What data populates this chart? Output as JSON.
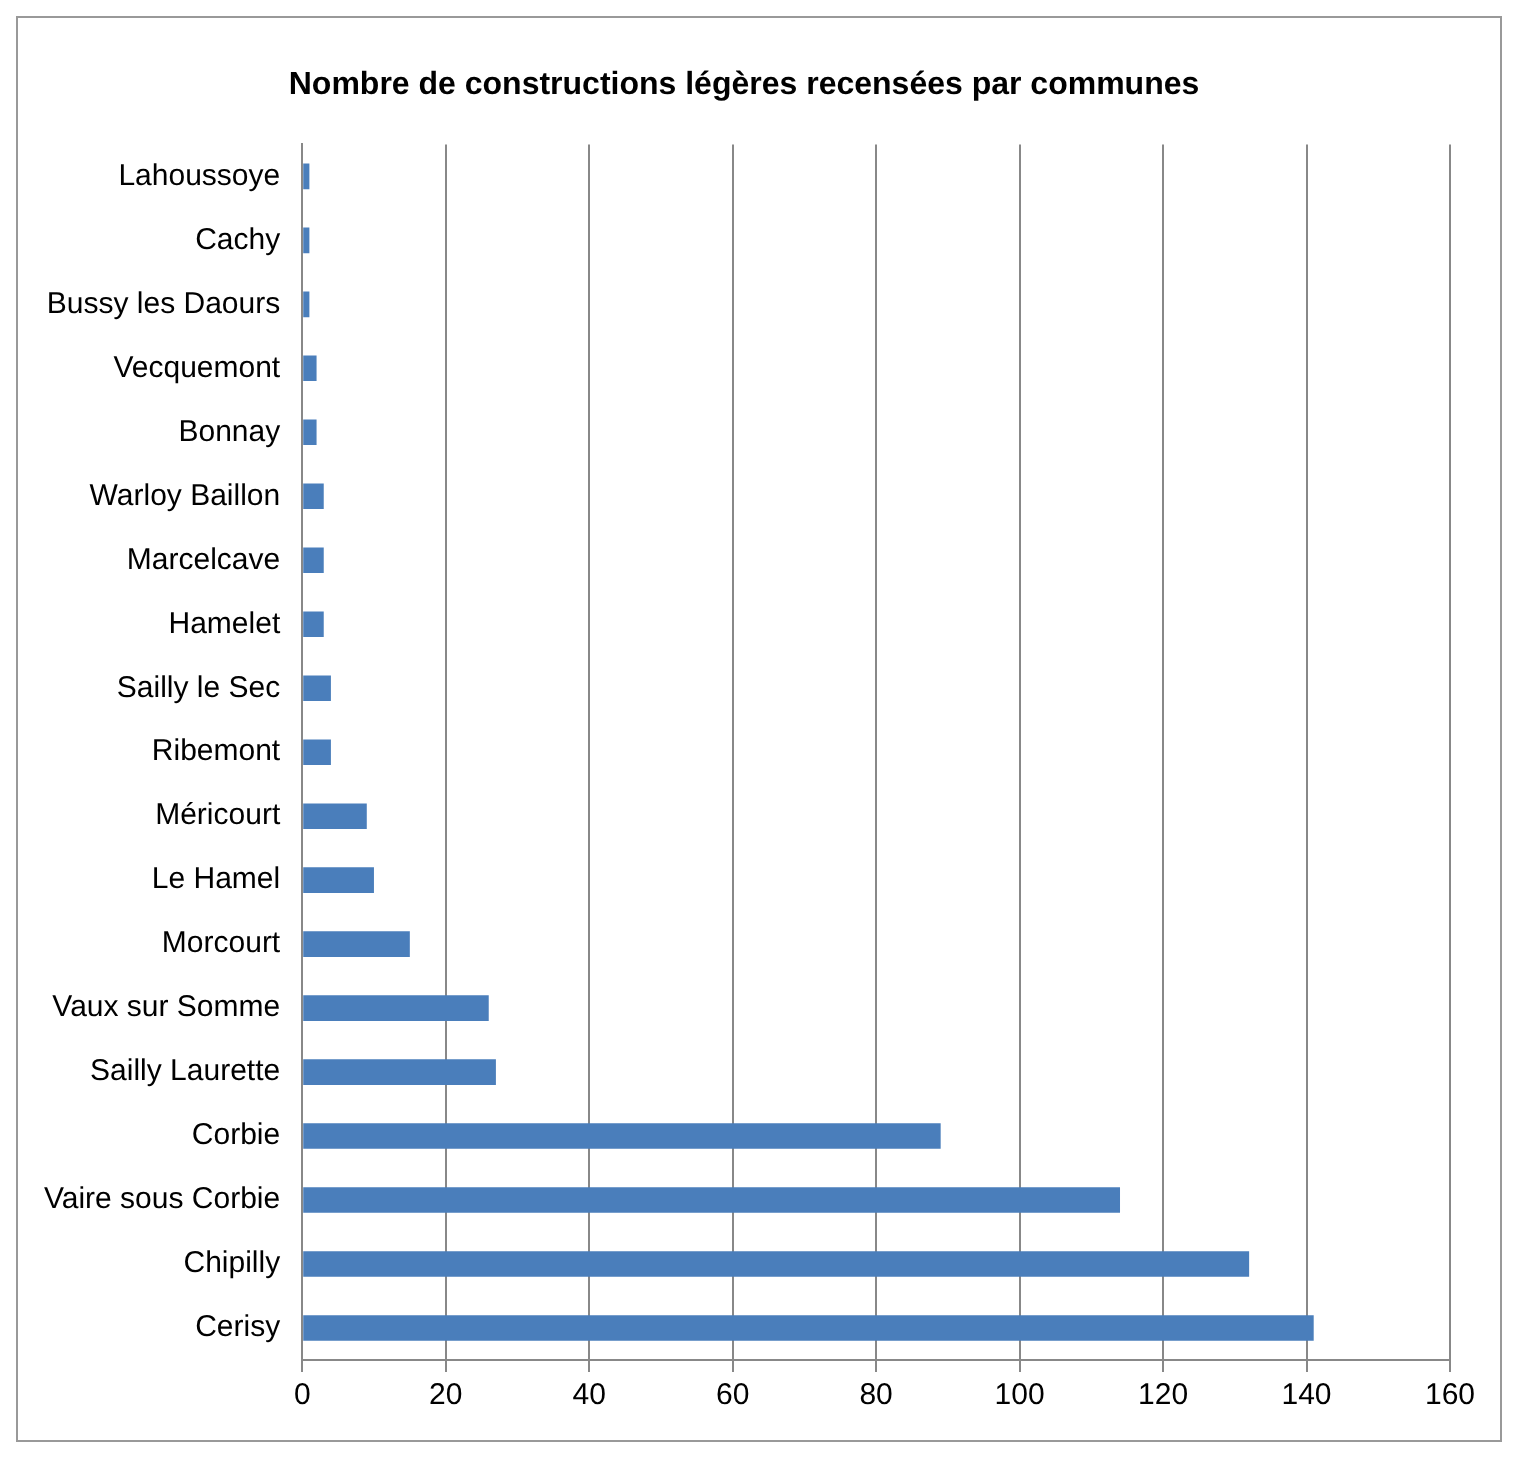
{
  "chart_data": {
    "type": "bar",
    "orientation": "horizontal",
    "title": "Nombre de constructions légères recensées par communes",
    "categories": [
      "Lahoussoye",
      "Cachy",
      "Bussy les Daours",
      "Vecquemont",
      "Bonnay",
      "Warloy Baillon",
      "Marcelcave",
      "Hamelet",
      "Sailly le Sec",
      "Ribemont",
      "Méricourt",
      "Le Hamel",
      "Morcourt",
      "Vaux sur Somme",
      "Sailly Laurette",
      "Corbie",
      "Vaire sous Corbie",
      "Chipilly",
      "Cerisy"
    ],
    "values": [
      1,
      1,
      1,
      2,
      2,
      3,
      3,
      3,
      4,
      4,
      9,
      10,
      15,
      26,
      27,
      89,
      114,
      132,
      141
    ],
    "color": "#4a7ebb",
    "xlim": [
      0,
      160
    ],
    "xticks": [
      0,
      20,
      40,
      60,
      80,
      100,
      120,
      140,
      160
    ],
    "grid": "x",
    "legend": false
  }
}
